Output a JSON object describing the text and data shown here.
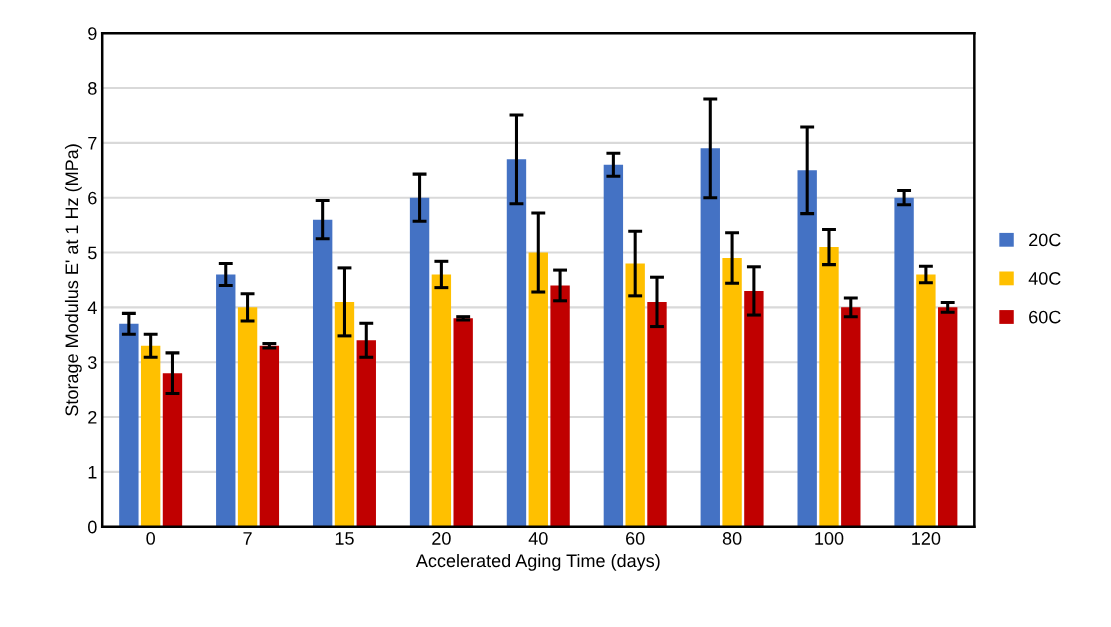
{
  "chart_data": {
    "type": "bar",
    "xlabel": "Accelerated Aging Time (days)",
    "ylabel": "Storage Modulus E' at 1 Hz (MPa)",
    "categories": [
      "0",
      "7",
      "15",
      "20",
      "40",
      "60",
      "80",
      "100",
      "120"
    ],
    "series": [
      {
        "name": "20C",
        "color": "#4472c4",
        "values": [
          3.7,
          4.6,
          5.6,
          6.0,
          6.7,
          6.6,
          6.9,
          6.5,
          6.0
        ],
        "errors": [
          0.19,
          0.2,
          0.35,
          0.43,
          0.81,
          0.21,
          0.9,
          0.79,
          0.13
        ]
      },
      {
        "name": "40C",
        "color": "#ffc000",
        "values": [
          3.3,
          4.0,
          4.1,
          4.6,
          5.0,
          4.8,
          4.9,
          5.1,
          4.6
        ],
        "errors": [
          0.21,
          0.25,
          0.62,
          0.24,
          0.72,
          0.59,
          0.46,
          0.32,
          0.15
        ]
      },
      {
        "name": "60C",
        "color": "#c00000",
        "values": [
          2.8,
          3.3,
          3.4,
          3.8,
          4.4,
          4.1,
          4.3,
          4.0,
          4.0
        ],
        "errors": [
          0.37,
          0.04,
          0.31,
          0.03,
          0.28,
          0.45,
          0.44,
          0.17,
          0.09
        ]
      }
    ],
    "ylim": [
      0,
      9
    ],
    "yticks": [
      0,
      1,
      2,
      3,
      4,
      5,
      6,
      7,
      8,
      9
    ],
    "grid": "y",
    "legend": "right"
  }
}
